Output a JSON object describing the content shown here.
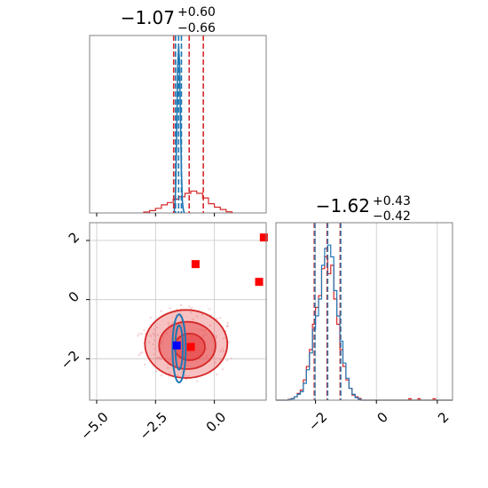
{
  "chart_data": [
    {
      "type": "histogram",
      "panel": "top-left",
      "title": {
        "value": "−1.07",
        "plus": "+0.60",
        "minus": "−0.66"
      },
      "xlim": [
        -5.3,
        2.2
      ],
      "quantile_lines_red": [
        -1.73,
        -1.07,
        -0.47
      ],
      "quantile_lines_blue": [
        -1.65,
        -1.52,
        -1.4
      ],
      "series": [
        {
          "color": "#d62728",
          "edges": [
            -3.0,
            -2.75,
            -2.5,
            -2.25,
            -2.0,
            -1.75,
            -1.5,
            -1.25,
            -1.0,
            -0.75,
            -0.5,
            -0.25,
            0.0,
            0.25,
            0.5,
            0.75
          ],
          "counts": [
            0.008,
            0.02,
            0.04,
            0.07,
            0.09,
            0.12,
            0.14,
            0.17,
            0.19,
            0.17,
            0.13,
            0.08,
            0.05,
            0.03,
            0.01
          ]
        },
        {
          "color": "#1f77b4",
          "x": [
            -1.72,
            -1.68,
            -1.64,
            -1.6,
            -1.56,
            -1.52,
            -1.48,
            -1.44,
            -1.4,
            -1.36,
            -1.32,
            -1.28
          ],
          "y": [
            0.0,
            0.05,
            0.25,
            0.7,
            1.25,
            1.45,
            1.3,
            0.8,
            0.35,
            0.1,
            0.03,
            0.0
          ]
        }
      ]
    },
    {
      "type": "histogram",
      "panel": "bottom-right",
      "title": {
        "value": "−1.62",
        "plus": "+0.43",
        "minus": "−0.42"
      },
      "xlim": [
        -3.3,
        2.5
      ],
      "xticks": [
        "−2",
        "0",
        "2"
      ],
      "xtick_values": [
        -2,
        0,
        2
      ],
      "quantile_lines_red": [
        -2.04,
        -1.62,
        -1.19
      ],
      "quantile_lines_blue": [
        -2.02,
        -1.6,
        -1.17
      ],
      "series": [
        {
          "color": "#d62728",
          "edges": [
            -3.0,
            -2.9,
            -2.8,
            -2.7,
            -2.6,
            -2.5,
            -2.4,
            -2.3,
            -2.2,
            -2.1,
            -2.0,
            -1.9,
            -1.8,
            -1.7,
            -1.6,
            -1.5,
            -1.4,
            -1.3,
            -1.2,
            -1.1,
            -1.0,
            -0.9,
            -0.8,
            -0.7,
            -0.6,
            -0.5
          ],
          "counts": [
            0,
            0.005,
            0.01,
            0.02,
            0.04,
            0.06,
            0.12,
            0.2,
            0.3,
            0.45,
            0.55,
            0.62,
            0.78,
            0.85,
            0.75,
            0.8,
            0.6,
            0.45,
            0.3,
            0.2,
            0.12,
            0.07,
            0.03,
            0.02,
            0.01
          ]
        },
        {
          "color": "#1f77b4",
          "edges": [
            -3.0,
            -2.9,
            -2.8,
            -2.7,
            -2.6,
            -2.5,
            -2.4,
            -2.3,
            -2.2,
            -2.1,
            -2.0,
            -1.9,
            -1.8,
            -1.7,
            -1.6,
            -1.5,
            -1.4,
            -1.3,
            -1.2,
            -1.1,
            -1.0,
            -0.9,
            -0.8,
            -0.7,
            -0.6,
            -0.5
          ],
          "counts": [
            0,
            0.003,
            0.008,
            0.02,
            0.035,
            0.05,
            0.1,
            0.18,
            0.28,
            0.42,
            0.5,
            0.6,
            0.8,
            0.9,
            0.92,
            0.85,
            0.65,
            0.5,
            0.35,
            0.22,
            0.13,
            0.07,
            0.035,
            0.015,
            0.005
          ]
        }
      ],
      "outlier_ticks": [
        1.1,
        1.4,
        1.9
      ]
    },
    {
      "type": "scatter",
      "panel": "bottom-left",
      "xlim": [
        -5.3,
        2.2
      ],
      "ylim": [
        -3.4,
        2.6
      ],
      "xticks": [
        "−5.0",
        "−2.5",
        "0.0"
      ],
      "xtick_values": [
        -5.0,
        -2.5,
        0.0
      ],
      "yticks": [
        "−2",
        "0",
        "2"
      ],
      "ytick_values": [
        -2,
        0,
        2
      ],
      "grid": true,
      "red_points": [
        {
          "x": 2.1,
          "y": 2.1
        },
        {
          "x": -0.8,
          "y": 1.2
        },
        {
          "x": 1.9,
          "y": 0.6
        },
        {
          "x": -1.0,
          "y": -1.6
        }
      ],
      "blue_points": [
        {
          "x": -1.6,
          "y": -1.55
        }
      ],
      "red_contours": [
        {
          "cx": -1.2,
          "cy": -1.5,
          "rx": 1.75,
          "ry": 1.15,
          "opacity": 0.35
        },
        {
          "cx": -1.15,
          "cy": -1.55,
          "rx": 1.2,
          "ry": 0.8,
          "opacity": 0.55
        },
        {
          "cx": -1.05,
          "cy": -1.6,
          "rx": 0.65,
          "ry": 0.45,
          "opacity": 0.75
        }
      ],
      "blue_contours": [
        {
          "cx": -1.5,
          "cy": -1.65,
          "rx": 0.28,
          "ry": 1.15
        },
        {
          "cx": -1.5,
          "cy": -1.62,
          "rx": 0.16,
          "ry": 0.75
        }
      ],
      "colors": {
        "red": "#d62728",
        "red_fill": "#e74c4c",
        "blue": "#1f77b4",
        "blue_marker": "#0000ff",
        "grid": "#c8c8c8"
      }
    }
  ]
}
